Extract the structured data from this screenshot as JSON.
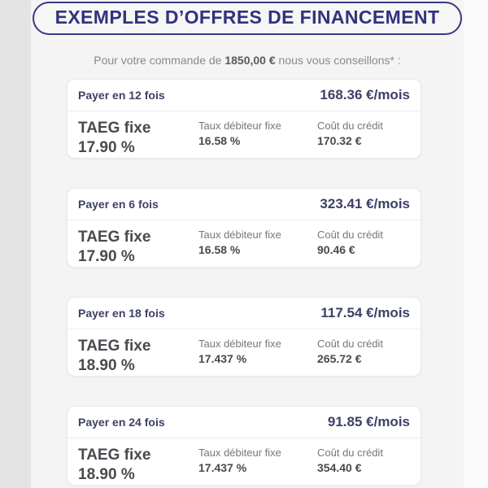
{
  "header": {
    "title": "EXEMPLES D’OFFRES DE FINANCEMENT"
  },
  "intro": {
    "prefix": "Pour votre commande de ",
    "amount": "1850,00 €",
    "suffix": " nous vous conseillons* :"
  },
  "labels": {
    "taeg": "TAEG fixe",
    "debit_rate": "Taux débiteur fixe",
    "credit_cost": "Coût du crédit"
  },
  "offers": [
    {
      "title": "Payer en 12 fois",
      "monthly": "168.36 €/mois",
      "taeg": "17.90 %",
      "debit_rate": "16.58 %",
      "credit_cost": "170.32 €"
    },
    {
      "title": "Payer en 6 fois",
      "monthly": "323.41 €/mois",
      "taeg": "17.90 %",
      "debit_rate": "16.58 %",
      "credit_cost": "90.46 €"
    },
    {
      "title": "Payer en 18 fois",
      "monthly": "117.54 €/mois",
      "taeg": "18.90 %",
      "debit_rate": "17.437 %",
      "credit_cost": "265.72 €"
    },
    {
      "title": "Payer en 24 fois",
      "monthly": "91.85 €/mois",
      "taeg": "18.90 %",
      "debit_rate": "17.437 %",
      "credit_cost": "354.40 €"
    }
  ],
  "colors": {
    "navy": "#32327e",
    "slate_heading": "#3d4166",
    "dark_value": "#49494f",
    "muted_label": "#76767e",
    "content_bg": "#f4f4f5",
    "left_strip_bg": "#e4e4e5",
    "right_strip_bg": "#fafafa",
    "card_bg": "#ffffff"
  }
}
